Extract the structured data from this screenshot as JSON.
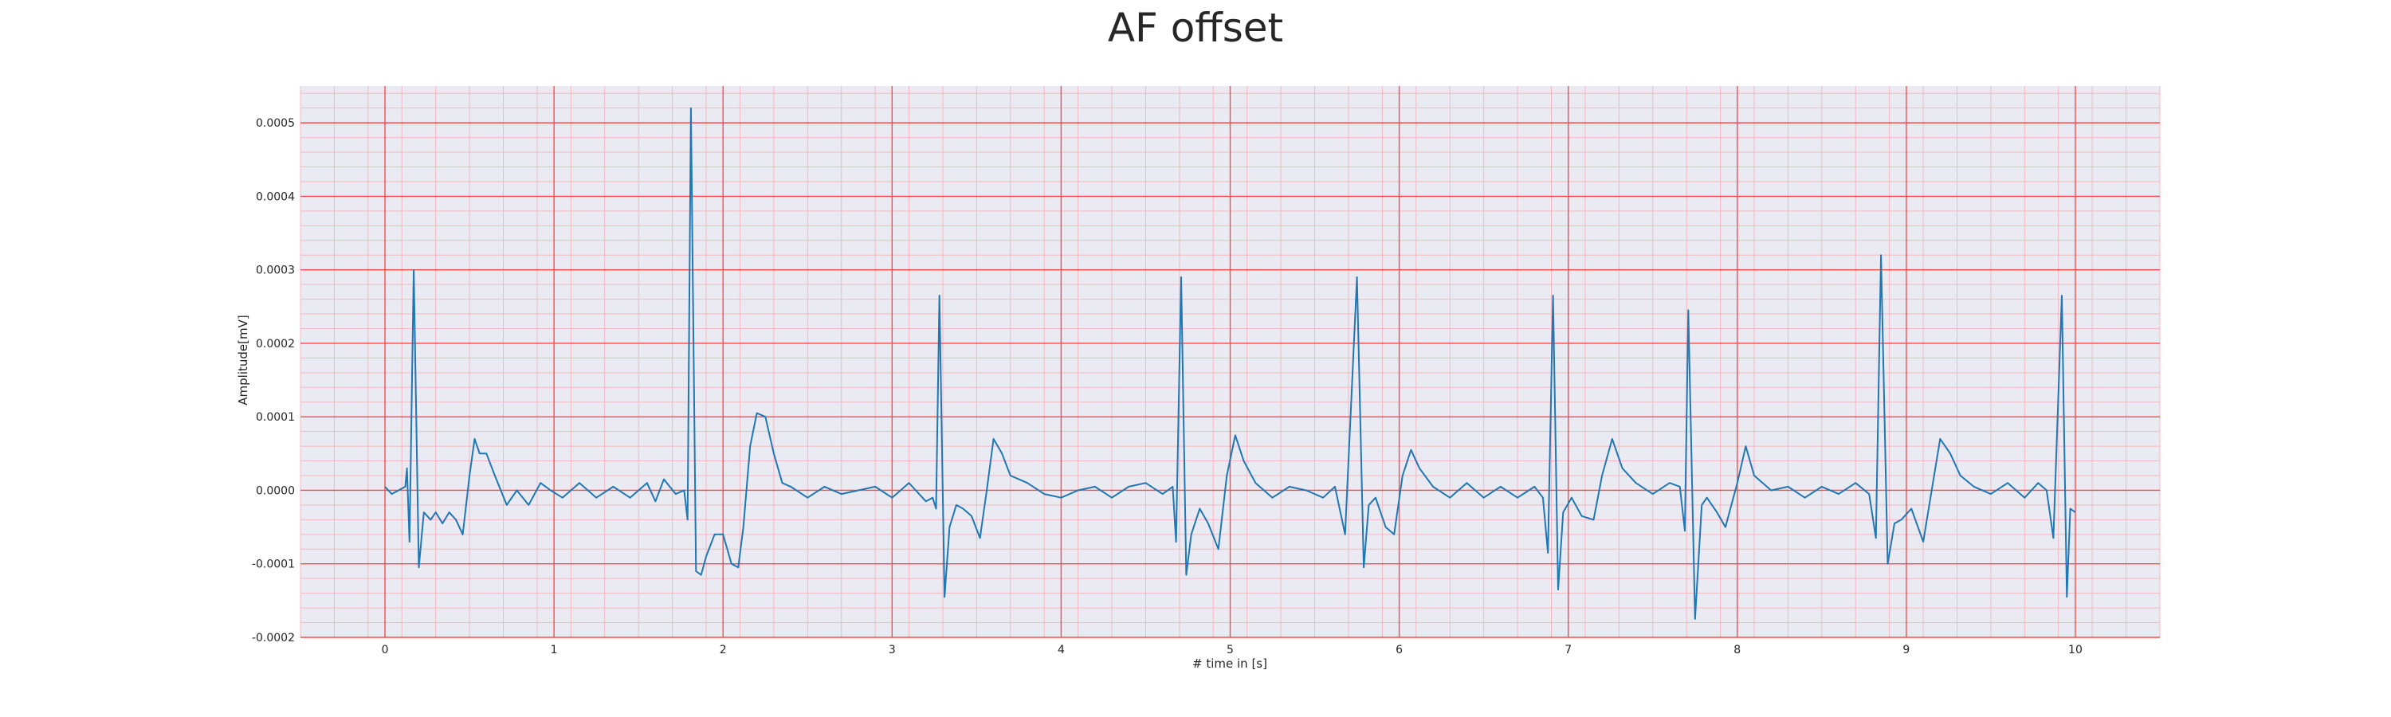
{
  "chart_data": {
    "type": "line",
    "title": "AF offset",
    "xlabel": "# time in [s]",
    "ylabel": "Amplitude[mV]",
    "xlim": [
      -0.5,
      10.5
    ],
    "ylim": [
      -0.0002,
      0.00055
    ],
    "xticks": [
      0,
      1,
      2,
      3,
      4,
      5,
      6,
      7,
      8,
      9,
      10
    ],
    "yticks": [
      "-0.0002",
      "-0.0001",
      "0.0000",
      "0.0001",
      "0.0002",
      "0.0003",
      "0.0004",
      "0.0005"
    ],
    "grid": true,
    "minor_grid": true,
    "colors": {
      "background": "#eaeaf2",
      "major_grid": "#ff4a4a",
      "minor_grid": "#f5b8bf",
      "line": "#1f77b4"
    },
    "series": [
      {
        "values": [
          [
            0.0,
            5e-06
          ],
          [
            0.04,
            -5e-06
          ],
          [
            0.08,
            0.0
          ],
          [
            0.12,
            5e-06
          ],
          [
            0.13,
            3e-05
          ],
          [
            0.145,
            -7e-05
          ],
          [
            0.17,
            0.0003
          ],
          [
            0.2,
            -0.000105
          ],
          [
            0.23,
            -3e-05
          ],
          [
            0.27,
            -4e-05
          ],
          [
            0.3,
            -3e-05
          ],
          [
            0.34,
            -4.5e-05
          ],
          [
            0.38,
            -3e-05
          ],
          [
            0.42,
            -4e-05
          ],
          [
            0.46,
            -6e-05
          ],
          [
            0.5,
            2e-05
          ],
          [
            0.53,
            7e-05
          ],
          [
            0.56,
            5e-05
          ],
          [
            0.6,
            5e-05
          ],
          [
            0.65,
            2e-05
          ],
          [
            0.72,
            -2e-05
          ],
          [
            0.78,
            0.0
          ],
          [
            0.85,
            -2e-05
          ],
          [
            0.92,
            1e-05
          ],
          [
            0.98,
            0.0
          ],
          [
            1.05,
            -1e-05
          ],
          [
            1.15,
            1e-05
          ],
          [
            1.25,
            -1e-05
          ],
          [
            1.35,
            5e-06
          ],
          [
            1.45,
            -1e-05
          ],
          [
            1.55,
            1e-05
          ],
          [
            1.6,
            -1.5e-05
          ],
          [
            1.65,
            1.5e-05
          ],
          [
            1.72,
            -5e-06
          ],
          [
            1.77,
            0.0
          ],
          [
            1.79,
            -4e-05
          ],
          [
            1.81,
            0.00052
          ],
          [
            1.84,
            -0.00011
          ],
          [
            1.87,
            -0.000115
          ],
          [
            1.9,
            -9e-05
          ],
          [
            1.95,
            -6e-05
          ],
          [
            2.0,
            -6e-05
          ],
          [
            2.05,
            -0.0001
          ],
          [
            2.09,
            -0.000105
          ],
          [
            2.12,
            -5e-05
          ],
          [
            2.16,
            6e-05
          ],
          [
            2.2,
            0.000105
          ],
          [
            2.25,
            0.0001
          ],
          [
            2.3,
            5e-05
          ],
          [
            2.35,
            1e-05
          ],
          [
            2.4,
            5e-06
          ],
          [
            2.5,
            -1e-05
          ],
          [
            2.6,
            5e-06
          ],
          [
            2.7,
            -5e-06
          ],
          [
            2.8,
            0.0
          ],
          [
            2.9,
            5e-06
          ],
          [
            3.0,
            -1e-05
          ],
          [
            3.1,
            1e-05
          ],
          [
            3.2,
            -1.5e-05
          ],
          [
            3.24,
            -1e-05
          ],
          [
            3.26,
            -2.5e-05
          ],
          [
            3.28,
            0.000265
          ],
          [
            3.31,
            -0.000145
          ],
          [
            3.34,
            -5e-05
          ],
          [
            3.38,
            -2e-05
          ],
          [
            3.42,
            -2.5e-05
          ],
          [
            3.47,
            -3.5e-05
          ],
          [
            3.52,
            -6.5e-05
          ],
          [
            3.56,
            0.0
          ],
          [
            3.6,
            7e-05
          ],
          [
            3.65,
            5e-05
          ],
          [
            3.7,
            2e-05
          ],
          [
            3.8,
            1e-05
          ],
          [
            3.9,
            -5e-06
          ],
          [
            4.0,
            -1e-05
          ],
          [
            4.1,
            0.0
          ],
          [
            4.2,
            5e-06
          ],
          [
            4.3,
            -1e-05
          ],
          [
            4.4,
            5e-06
          ],
          [
            4.5,
            1e-05
          ],
          [
            4.6,
            -5e-06
          ],
          [
            4.66,
            5e-06
          ],
          [
            4.68,
            -7e-05
          ],
          [
            4.71,
            0.00029
          ],
          [
            4.74,
            -0.000115
          ],
          [
            4.77,
            -6e-05
          ],
          [
            4.82,
            -2.5e-05
          ],
          [
            4.87,
            -4.5e-05
          ],
          [
            4.93,
            -8e-05
          ],
          [
            4.98,
            2e-05
          ],
          [
            5.03,
            7.5e-05
          ],
          [
            5.08,
            4e-05
          ],
          [
            5.15,
            1e-05
          ],
          [
            5.25,
            -1e-05
          ],
          [
            5.35,
            5e-06
          ],
          [
            5.45,
            0.0
          ],
          [
            5.55,
            -1e-05
          ],
          [
            5.62,
            5e-06
          ],
          [
            5.68,
            -6e-05
          ],
          [
            5.75,
            0.00029
          ],
          [
            5.79,
            -0.000105
          ],
          [
            5.82,
            -2e-05
          ],
          [
            5.86,
            -1e-05
          ],
          [
            5.92,
            -5e-05
          ],
          [
            5.97,
            -6e-05
          ],
          [
            6.02,
            2e-05
          ],
          [
            6.07,
            5.5e-05
          ],
          [
            6.12,
            3e-05
          ],
          [
            6.2,
            5e-06
          ],
          [
            6.3,
            -1e-05
          ],
          [
            6.4,
            1e-05
          ],
          [
            6.5,
            -1e-05
          ],
          [
            6.6,
            5e-06
          ],
          [
            6.7,
            -1e-05
          ],
          [
            6.8,
            5e-06
          ],
          [
            6.85,
            -1e-05
          ],
          [
            6.88,
            -8.5e-05
          ],
          [
            6.91,
            0.000265
          ],
          [
            6.94,
            -0.000135
          ],
          [
            6.97,
            -3e-05
          ],
          [
            7.02,
            -1e-05
          ],
          [
            7.08,
            -3.5e-05
          ],
          [
            7.15,
            -4e-05
          ],
          [
            7.2,
            2e-05
          ],
          [
            7.26,
            7e-05
          ],
          [
            7.32,
            3e-05
          ],
          [
            7.4,
            1e-05
          ],
          [
            7.5,
            -5e-06
          ],
          [
            7.6,
            1e-05
          ],
          [
            7.66,
            5e-06
          ],
          [
            7.69,
            -5.5e-05
          ],
          [
            7.71,
            0.000245
          ],
          [
            7.75,
            -0.000175
          ],
          [
            7.79,
            -2e-05
          ],
          [
            7.82,
            -1e-05
          ],
          [
            7.88,
            -3e-05
          ],
          [
            7.93,
            -5e-05
          ],
          [
            8.0,
            1e-05
          ],
          [
            8.05,
            6e-05
          ],
          [
            8.1,
            2e-05
          ],
          [
            8.2,
            0.0
          ],
          [
            8.3,
            5e-06
          ],
          [
            8.4,
            -1e-05
          ],
          [
            8.5,
            5e-06
          ],
          [
            8.6,
            -5e-06
          ],
          [
            8.7,
            1e-05
          ],
          [
            8.78,
            -5e-06
          ],
          [
            8.82,
            -6.5e-05
          ],
          [
            8.85,
            0.00032
          ],
          [
            8.89,
            -0.0001
          ],
          [
            8.93,
            -4.5e-05
          ],
          [
            8.97,
            -4e-05
          ],
          [
            9.03,
            -2.5e-05
          ],
          [
            9.1,
            -7e-05
          ],
          [
            9.15,
            0.0
          ],
          [
            9.2,
            7e-05
          ],
          [
            9.26,
            5e-05
          ],
          [
            9.32,
            2e-05
          ],
          [
            9.4,
            5e-06
          ],
          [
            9.5,
            -5e-06
          ],
          [
            9.6,
            1e-05
          ],
          [
            9.7,
            -1e-05
          ],
          [
            9.78,
            1e-05
          ],
          [
            9.83,
            0.0
          ],
          [
            9.87,
            -6.5e-05
          ],
          [
            9.92,
            0.000265
          ],
          [
            9.95,
            -0.000145
          ],
          [
            9.97,
            -2.5e-05
          ],
          [
            10.0,
            -3e-05
          ]
        ]
      }
    ]
  }
}
